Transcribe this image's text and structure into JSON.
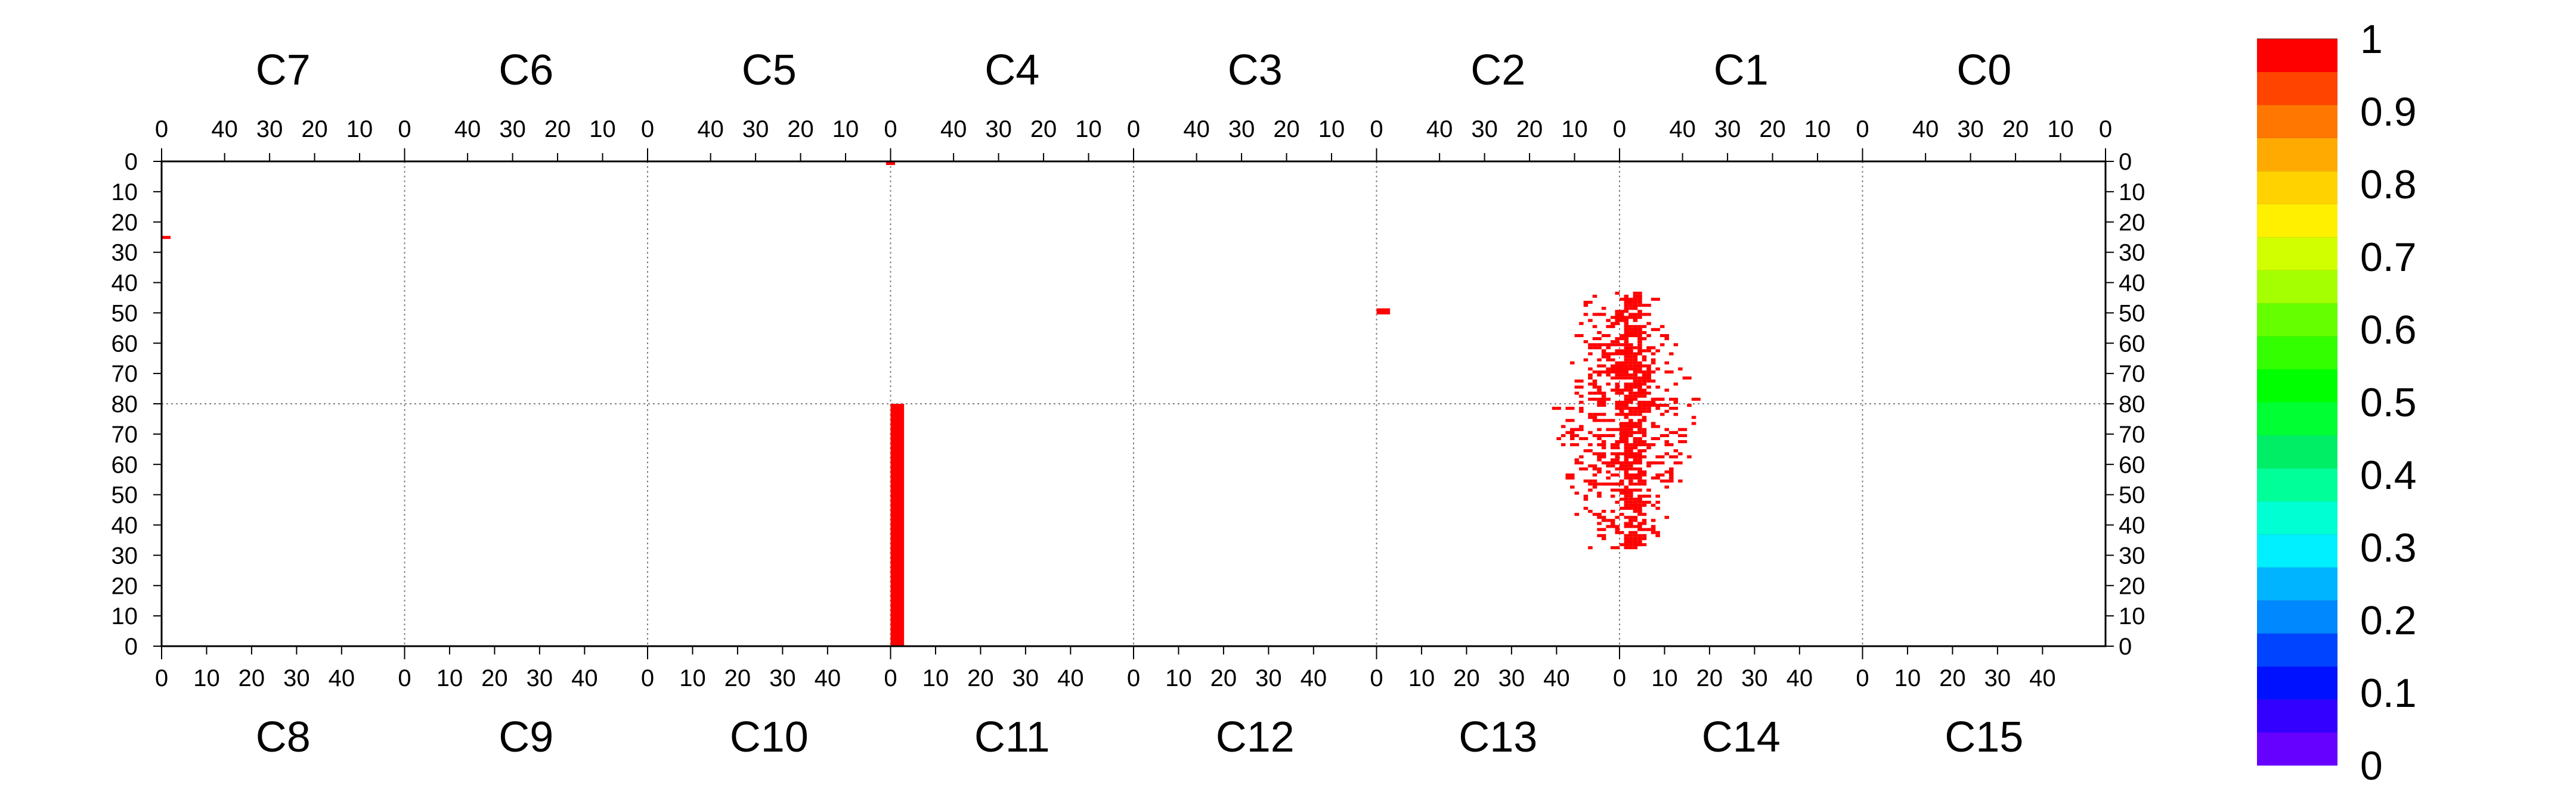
{
  "chart_data": {
    "type": "heatmap",
    "title": "",
    "chips_top": [
      "C7",
      "C6",
      "C5",
      "C4",
      "C3",
      "C2",
      "C1",
      "C0"
    ],
    "chips_bottom": [
      "C8",
      "C9",
      "C10",
      "C11",
      "C12",
      "C13",
      "C14",
      "C15"
    ],
    "columns_per_chip": 54,
    "rows_per_half": 80,
    "top_tick_labels": [
      "0",
      "10",
      "20",
      "30",
      "40"
    ],
    "bottom_tick_labels": [
      "0",
      "10",
      "20",
      "30",
      "40"
    ],
    "row_tick_labels": [
      "0",
      "10",
      "20",
      "30",
      "40",
      "50",
      "60",
      "70",
      "80"
    ],
    "colorbar": {
      "min": 0,
      "max": 1,
      "tick_labels": [
        "0",
        "0.1",
        "0.2",
        "0.3",
        "0.4",
        "0.5",
        "0.6",
        "0.7",
        "0.8",
        "0.9",
        "1"
      ],
      "colors": [
        "#6600ff",
        "#3300ff",
        "#0011ff",
        "#0044ff",
        "#0088ff",
        "#00b4ff",
        "#00f0ff",
        "#00ffd2",
        "#00ff99",
        "#00ee66",
        "#00ff33",
        "#00ff00",
        "#33ff00",
        "#66ff00",
        "#a6ff00",
        "#d2ff00",
        "#fff000",
        "#ffd200",
        "#ffaa00",
        "#ff7700",
        "#ff4400",
        "#ff0000"
      ]
    },
    "grid": "dotted chip boundaries",
    "cell_value_color": "#ff0000",
    "rects": [
      {
        "col0": 161,
        "col1": 163,
        "row0": 0,
        "row1": 1.2,
        "value": 1
      },
      {
        "col0": 0,
        "col1": 2,
        "row0": 24.6,
        "row1": 25.6,
        "value": 1
      },
      {
        "col0": 162,
        "col1": 165,
        "row0": 80,
        "row1": 160,
        "value": 1
      },
      {
        "col0": 270,
        "col1": 273,
        "row0": 48.5,
        "row1": 50.5,
        "value": 1
      }
    ],
    "cluster": {
      "value": 1,
      "col_center": 324.5,
      "col_halfwidth_min": 7,
      "col_halfwidth_max": 15,
      "row_start": 43,
      "row_end": 127,
      "density": 0.36
    }
  }
}
